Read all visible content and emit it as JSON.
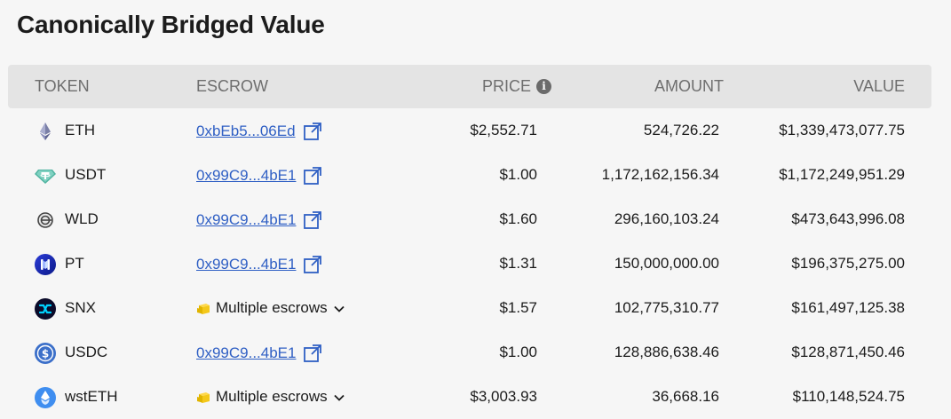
{
  "title": "Canonically Bridged Value",
  "columns": {
    "token": "TOKEN",
    "escrow": "ESCROW",
    "price": "PRICE",
    "amount": "AMOUNT",
    "value": "VALUE"
  },
  "rows": [
    {
      "symbol": "ETH",
      "icon": "ethereum-icon",
      "escrow": "0xbEb5...06Ed",
      "escrow_type": "address",
      "price": "$2,552.71",
      "amount": "524,726.22",
      "value": "$1,339,473,077.75"
    },
    {
      "symbol": "USDT",
      "icon": "tether-icon",
      "escrow": "0x99C9...4bE1",
      "escrow_type": "address",
      "price": "$1.00",
      "amount": "1,172,162,156.34",
      "value": "$1,172,249,951.29"
    },
    {
      "symbol": "WLD",
      "icon": "worldcoin-icon",
      "escrow": "0x99C9...4bE1",
      "escrow_type": "address",
      "price": "$1.60",
      "amount": "296,160,103.24",
      "value": "$473,643,996.08"
    },
    {
      "symbol": "PT",
      "icon": "pt-token-icon",
      "escrow": "0x99C9...4bE1",
      "escrow_type": "address",
      "price": "$1.31",
      "amount": "150,000,000.00",
      "value": "$196,375,275.00"
    },
    {
      "symbol": "SNX",
      "icon": "synthetix-icon",
      "escrow": "Multiple escrows",
      "escrow_type": "multiple",
      "price": "$1.57",
      "amount": "102,775,310.77",
      "value": "$161,497,125.38"
    },
    {
      "symbol": "USDC",
      "icon": "usdc-icon",
      "escrow": "0x99C9...4bE1",
      "escrow_type": "address",
      "price": "$1.00",
      "amount": "128,886,638.46",
      "value": "$128,871,450.46"
    },
    {
      "symbol": "wstETH",
      "icon": "wsteth-icon",
      "escrow": "Multiple escrows",
      "escrow_type": "multiple",
      "price": "$3,003.93",
      "amount": "36,668.16",
      "value": "$110,148,524.75"
    }
  ],
  "colors": {
    "link": "#2f5fc4",
    "header_bg": "#e4e4e4",
    "page_bg": "#f6f6f6"
  }
}
